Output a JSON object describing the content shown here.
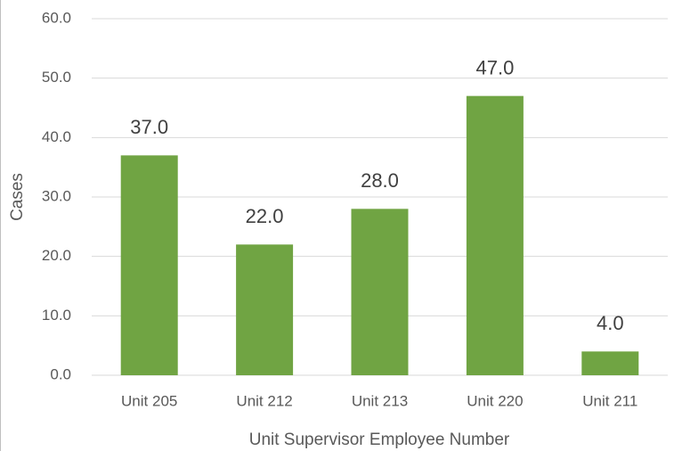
{
  "chart_data": {
    "type": "bar",
    "categories": [
      "Unit 205",
      "Unit 212",
      "Unit 213",
      "Unit 220",
      "Unit 211"
    ],
    "values": [
      37,
      22,
      28,
      47,
      4
    ],
    "value_labels": [
      "37.0",
      "22.0",
      "28.0",
      "47.0",
      "4.0"
    ],
    "color": "#70a443",
    "x_label": "Unit Supervisor Employee Number",
    "y_label": "Cases",
    "ylim": [
      0,
      60
    ],
    "yticks": [
      {
        "value": 0,
        "label": "0.0"
      },
      {
        "value": 10,
        "label": "10.0"
      },
      {
        "value": 20,
        "label": "20.0"
      },
      {
        "value": 30,
        "label": "30.0"
      },
      {
        "value": 40,
        "label": "40.0"
      },
      {
        "value": 50,
        "label": "50.0"
      },
      {
        "value": 60,
        "label": "60.0"
      }
    ],
    "grid": true
  }
}
